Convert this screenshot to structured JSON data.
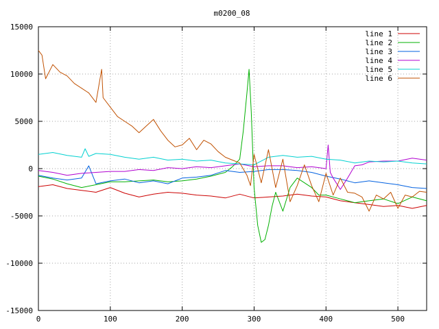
{
  "chart_data": {
    "type": "line",
    "title": "m0200_08",
    "xlabel": "",
    "ylabel": "",
    "xlim": [
      0,
      540
    ],
    "ylim": [
      -15000,
      15000
    ],
    "xticks": [
      0,
      100,
      200,
      300,
      400,
      500
    ],
    "yticks": [
      -15000,
      -10000,
      -5000,
      0,
      5000,
      10000,
      15000
    ],
    "grid": true,
    "legend_position": "top-right",
    "series": [
      {
        "name": "line 1",
        "color": "#cc0000",
        "x": [
          0,
          20,
          40,
          60,
          80,
          100,
          120,
          140,
          160,
          180,
          200,
          220,
          240,
          260,
          280,
          300,
          320,
          340,
          360,
          380,
          400,
          420,
          440,
          460,
          480,
          500,
          520,
          540
        ],
        "y": [
          -1900,
          -1700,
          -2100,
          -2300,
          -2500,
          -2000,
          -2600,
          -3000,
          -2700,
          -2500,
          -2600,
          -2800,
          -2900,
          -3100,
          -2700,
          -3100,
          -3000,
          -2900,
          -2700,
          -2900,
          -3000,
          -3400,
          -3600,
          -3800,
          -4000,
          -3900,
          -4200,
          -3900
        ]
      },
      {
        "name": "line 2",
        "color": "#00b000",
        "x": [
          0,
          20,
          40,
          60,
          80,
          100,
          120,
          140,
          160,
          180,
          200,
          220,
          240,
          260,
          270,
          280,
          285,
          290,
          293,
          296,
          300,
          305,
          310,
          315,
          320,
          325,
          330,
          340,
          350,
          360,
          370,
          380,
          390,
          400,
          420,
          440,
          460,
          480,
          500,
          520,
          540
        ],
        "y": [
          -800,
          -1100,
          -1600,
          -2000,
          -1700,
          -1400,
          -1400,
          -1300,
          -1200,
          -1400,
          -1300,
          -1100,
          -800,
          -400,
          200,
          1000,
          4000,
          8000,
          10500,
          6000,
          -2000,
          -6000,
          -7800,
          -7500,
          -6000,
          -4000,
          -2500,
          -4500,
          -2000,
          -1000,
          -1500,
          -2000,
          -2800,
          -2800,
          -3200,
          -3600,
          -3400,
          -3200,
          -3700,
          -3000,
          -3400
        ]
      },
      {
        "name": "line 3",
        "color": "#0060e0",
        "x": [
          0,
          20,
          40,
          60,
          70,
          80,
          100,
          120,
          140,
          160,
          180,
          200,
          220,
          240,
          260,
          280,
          300,
          320,
          340,
          360,
          380,
          400,
          420,
          440,
          460,
          480,
          500,
          520,
          540
        ],
        "y": [
          -700,
          -1000,
          -1200,
          -1000,
          300,
          -1600,
          -1300,
          -1100,
          -1500,
          -1300,
          -1600,
          -1000,
          -900,
          -700,
          -200,
          -400,
          -300,
          -100,
          -100,
          -200,
          -400,
          -800,
          -1100,
          -1500,
          -1300,
          -1500,
          -1700,
          -2000,
          -2100
        ]
      },
      {
        "name": "line 4",
        "color": "#b000d0",
        "x": [
          0,
          20,
          40,
          60,
          80,
          100,
          120,
          140,
          160,
          180,
          200,
          220,
          240,
          260,
          280,
          300,
          320,
          340,
          360,
          380,
          400,
          403,
          406,
          410,
          420,
          430,
          440,
          450,
          460,
          480,
          500,
          520,
          540
        ],
        "y": [
          -200,
          -400,
          -700,
          -500,
          -400,
          -300,
          -300,
          -100,
          -200,
          100,
          0,
          200,
          100,
          300,
          500,
          200,
          300,
          300,
          100,
          200,
          0,
          2500,
          -400,
          -1000,
          -2200,
          -1000,
          300,
          400,
          700,
          800,
          800,
          1100,
          900
        ]
      },
      {
        "name": "line 5",
        "color": "#00d0d0",
        "x": [
          0,
          20,
          40,
          60,
          65,
          70,
          80,
          100,
          120,
          140,
          160,
          180,
          200,
          220,
          240,
          260,
          280,
          300,
          320,
          340,
          360,
          380,
          400,
          420,
          440,
          460,
          480,
          500,
          520,
          540
        ],
        "y": [
          1500,
          1700,
          1400,
          1200,
          2100,
          1300,
          1600,
          1500,
          1200,
          1000,
          1200,
          900,
          1000,
          800,
          900,
          600,
          500,
          400,
          1200,
          1400,
          1200,
          1300,
          1000,
          900,
          600,
          800,
          700,
          800,
          600,
          500
        ]
      },
      {
        "name": "line 6",
        "color": "#c05000",
        "x": [
          0,
          5,
          10,
          20,
          30,
          40,
          50,
          60,
          70,
          80,
          88,
          90,
          100,
          110,
          120,
          130,
          140,
          150,
          160,
          170,
          180,
          190,
          200,
          210,
          220,
          230,
          240,
          250,
          260,
          270,
          280,
          290,
          295,
          300,
          310,
          320,
          330,
          340,
          350,
          360,
          370,
          380,
          390,
          400,
          410,
          420,
          430,
          440,
          450,
          460,
          470,
          480,
          490,
          500,
          510,
          520,
          530,
          540
        ],
        "y": [
          12500,
          12000,
          9500,
          11000,
          10200,
          9800,
          9000,
          8500,
          8000,
          7000,
          10500,
          7500,
          6500,
          5500,
          5000,
          4500,
          3800,
          4500,
          5200,
          4000,
          3000,
          2300,
          2500,
          3200,
          2000,
          3000,
          2600,
          1800,
          1200,
          900,
          600,
          -700,
          -1800,
          1500,
          -1500,
          2000,
          -2000,
          1000,
          -3500,
          -1800,
          400,
          -1800,
          -3500,
          -500,
          -2800,
          -1000,
          -2500,
          -2600,
          -3000,
          -4500,
          -2800,
          -3200,
          -2500,
          -4200,
          -2800,
          -3000,
          -2400,
          -2500
        ]
      }
    ]
  }
}
